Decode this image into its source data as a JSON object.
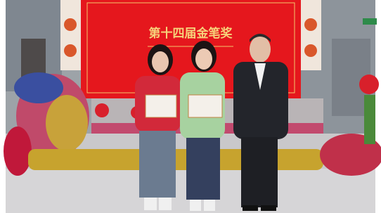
{
  "banner": {
    "title": "第十四届金笔奖"
  }
}
